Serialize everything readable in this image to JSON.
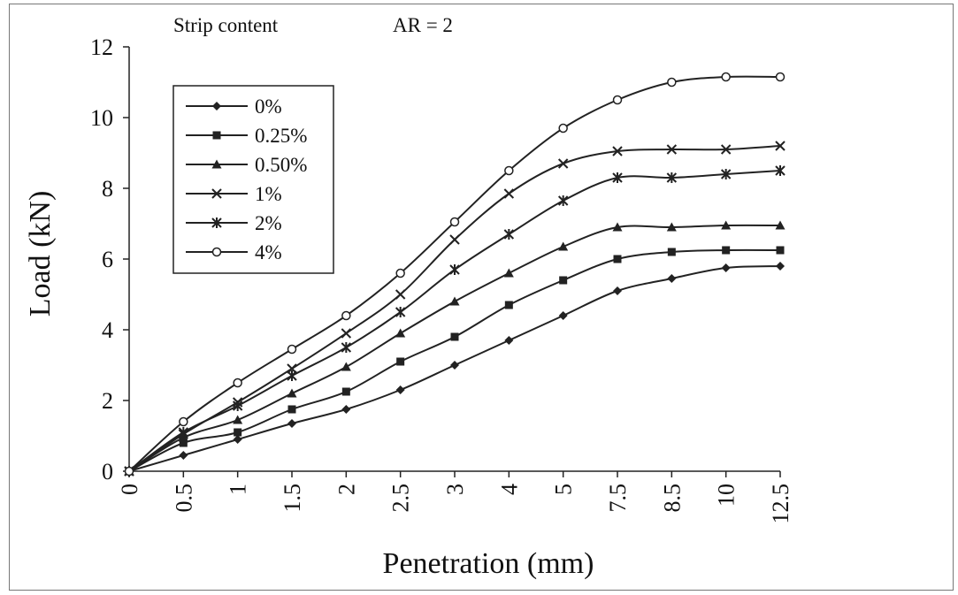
{
  "header": {
    "annotation_left": "Strip content",
    "annotation_right": "AR = 2"
  },
  "chart_data": {
    "type": "line",
    "xlabel": "Penetration (mm)",
    "ylabel": "Load (kN)",
    "categories": [
      "0",
      "0.5",
      "1",
      "1.5",
      "2",
      "2.5",
      "3",
      "4",
      "5",
      "7.5",
      "8.5",
      "10",
      "12.5"
    ],
    "ylim": [
      0,
      12
    ],
    "yticks": [
      "0",
      "2",
      "4",
      "6",
      "8",
      "10",
      "12"
    ],
    "grid": false,
    "legend_position": "top-left",
    "line_color": "#222222",
    "series": [
      {
        "name": "0%",
        "marker": "diamond",
        "values": [
          0,
          0.45,
          0.9,
          1.35,
          1.75,
          2.3,
          3.0,
          3.7,
          4.4,
          5.1,
          5.45,
          5.75,
          5.8
        ]
      },
      {
        "name": "0.25%",
        "marker": "square",
        "values": [
          0,
          0.8,
          1.1,
          1.75,
          2.25,
          3.1,
          3.8,
          4.7,
          5.4,
          6.0,
          6.2,
          6.25,
          6.25
        ]
      },
      {
        "name": "0.50%",
        "marker": "triangle",
        "values": [
          0,
          0.95,
          1.45,
          2.2,
          2.95,
          3.9,
          4.8,
          5.6,
          6.35,
          6.9,
          6.9,
          6.95,
          6.95
        ]
      },
      {
        "name": "1%",
        "marker": "x",
        "values": [
          0,
          1.05,
          1.95,
          2.9,
          3.9,
          5.0,
          6.55,
          7.85,
          8.7,
          9.05,
          9.1,
          9.1,
          9.2
        ]
      },
      {
        "name": "2%",
        "marker": "star",
        "values": [
          0,
          1.1,
          1.85,
          2.7,
          3.5,
          4.5,
          5.7,
          6.7,
          7.65,
          8.3,
          8.3,
          8.4,
          8.5
        ]
      },
      {
        "name": "4%",
        "marker": "circle",
        "values": [
          0,
          1.4,
          2.5,
          3.45,
          4.4,
          5.6,
          7.05,
          8.5,
          9.7,
          10.5,
          11.0,
          11.15,
          11.15
        ]
      }
    ]
  }
}
